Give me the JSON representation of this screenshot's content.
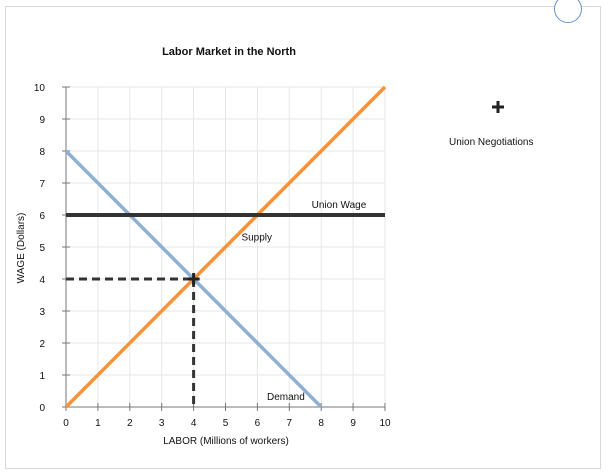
{
  "chart_data": {
    "type": "line",
    "title": "Labor Market in the North",
    "xlabel": "LABOR (Millions of workers)",
    "ylabel": "WAGE (Dollars)",
    "xlim": [
      0,
      10
    ],
    "ylim": [
      0,
      10
    ],
    "xticks": [
      0,
      1,
      2,
      3,
      4,
      5,
      6,
      7,
      8,
      9,
      10
    ],
    "yticks": [
      0,
      1,
      2,
      3,
      4,
      5,
      6,
      7,
      8,
      9,
      10
    ],
    "grid": true,
    "series": [
      {
        "name": "Supply",
        "color": "#f7923a",
        "points": [
          [
            0,
            0
          ],
          [
            10,
            10
          ]
        ]
      },
      {
        "name": "Demand",
        "color": "#8db0d3",
        "points": [
          [
            0,
            8
          ],
          [
            8,
            0
          ]
        ]
      },
      {
        "name": "Union Wage",
        "color": "#333333",
        "points": [
          [
            0,
            6
          ],
          [
            10,
            6
          ]
        ]
      }
    ],
    "equilibrium": {
      "x": 4,
      "y": 4,
      "color": "#333333",
      "style": "dashed"
    }
  },
  "legend": {
    "label": "Union Negotiations",
    "icon": "cross-marker-icon"
  },
  "colors": {
    "supply": "#f7923a",
    "demand": "#8db0d3",
    "union_wage": "#333333",
    "grid": "#e6e6e6"
  }
}
